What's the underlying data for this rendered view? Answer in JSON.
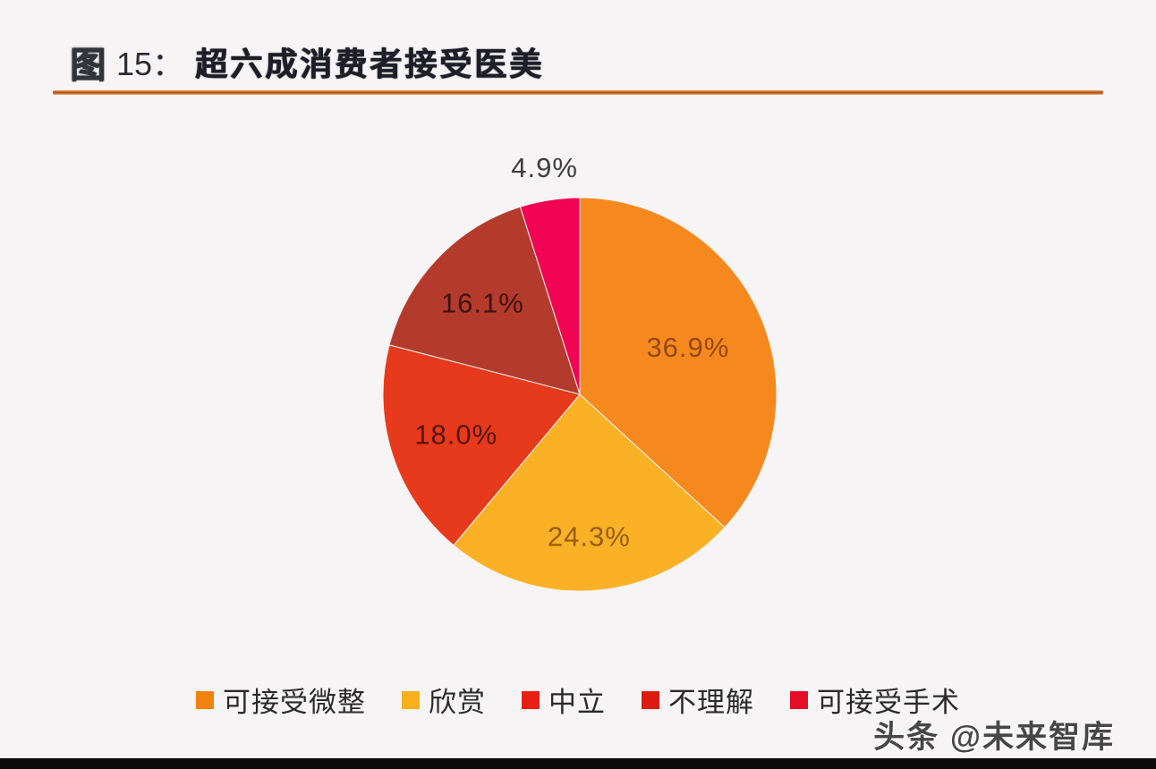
{
  "header": {
    "figure_label": "图",
    "figure_number": "15：",
    "title": "超六成消费者接受医美"
  },
  "accent": {
    "rule_color": "#b4500f",
    "background_color": "#f6f4f5",
    "bottom_bar_color": "#0b0b0b"
  },
  "chart_data": {
    "type": "pie",
    "title": "超六成消费者接受医美",
    "start_angle_deg": 0,
    "direction": "clockwise",
    "legend_position": "bottom",
    "slices": [
      {
        "label": "可接受微整",
        "value": 36.9,
        "display": "36.9%",
        "color": "#f6891e",
        "legend_color": "#f0820f",
        "label_color": "#94480f",
        "label_r": 0.6,
        "outside": false
      },
      {
        "label": "欣赏",
        "value": 24.3,
        "display": "24.3%",
        "color": "#fbb126",
        "legend_color": "#f8b01c",
        "label_color": "#955d10",
        "label_r": 0.72,
        "outside": false
      },
      {
        "label": "中立",
        "value": 18.0,
        "display": "18.0%",
        "color": "#e7391b",
        "legend_color": "#e81f15",
        "label_color": "#55150a",
        "label_r": 0.66,
        "outside": false
      },
      {
        "label": "不理解",
        "value": 16.1,
        "display": "16.1%",
        "color": "#b43b2c",
        "legend_color": "#dc1a10",
        "label_color": "#3f120c",
        "label_r": 0.68,
        "outside": false
      },
      {
        "label": "可接受手术",
        "value": 4.9,
        "display": "4.9%",
        "color": "#f10453",
        "legend_color": "#e60c26",
        "label_color": "#3e3e3e",
        "label_r": 1.17,
        "outside": true
      }
    ]
  },
  "watermark": {
    "text": "头条 @未来智库"
  }
}
